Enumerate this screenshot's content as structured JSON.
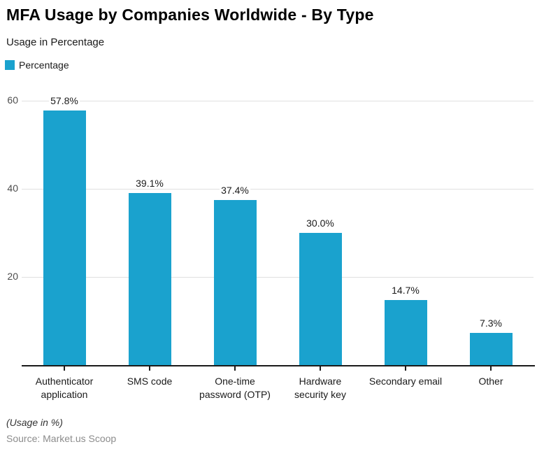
{
  "header": {
    "title": "MFA Usage by Companies Worldwide - By Type",
    "subtitle": "Usage in Percentage"
  },
  "legend": {
    "label": "Percentage",
    "swatch_color": "#1aa2ce"
  },
  "chart_data": {
    "type": "bar",
    "title": "MFA Usage by Companies Worldwide - By Type",
    "subtitle": "Usage in Percentage",
    "categories": [
      "Authenticator application",
      "SMS code",
      "One-time password (OTP)",
      "Hardware security key",
      "Secondary email",
      "Other"
    ],
    "values": [
      57.8,
      39.1,
      37.4,
      30.0,
      14.7,
      7.3
    ],
    "value_labels": [
      "57.8%",
      "39.1%",
      "37.4%",
      "30.0%",
      "14.7%",
      "7.3%"
    ],
    "series_name": "Percentage",
    "xlabel": "",
    "ylabel": "Usage in Percentage",
    "ylim": [
      0,
      63.5
    ],
    "yticks": [
      20,
      40,
      60
    ],
    "grid": "horizontal",
    "legend_position": "top-left",
    "bar_color": "#1aa2ce"
  },
  "footer": {
    "note": "(Usage in %)",
    "source": "Source: Market.us Scoop"
  }
}
